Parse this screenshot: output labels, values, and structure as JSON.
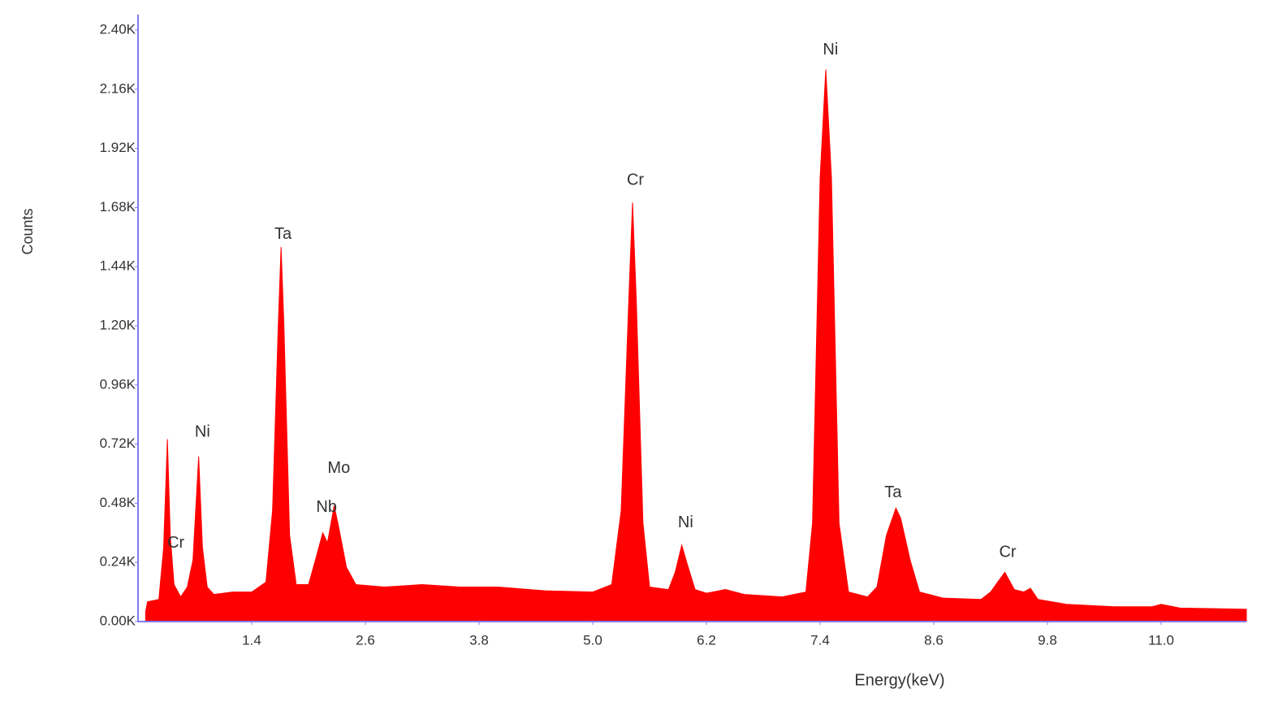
{
  "chart_data": {
    "type": "area",
    "x_label": "Energy(keV)",
    "y_label": "Counts",
    "color": "#ff0000",
    "axis_color": "#7b7bef",
    "xlim": [
      0.2,
      11.9
    ],
    "ylim": [
      0,
      2400
    ],
    "xticks": [
      1.4,
      2.6,
      3.8,
      {
        "value": 5,
        "label": "5.0"
      },
      6.2,
      7.4,
      8.6,
      9.8,
      {
        "value": 11,
        "label": "11.0"
      }
    ],
    "yticks": [
      {
        "value": 0,
        "label": "0.00K"
      },
      {
        "value": 240,
        "label": "0.24K"
      },
      {
        "value": 480,
        "label": "0.48K"
      },
      {
        "value": 720,
        "label": "0.72K"
      },
      {
        "value": 960,
        "label": "0.96K"
      },
      {
        "value": 1200,
        "label": "1.20K"
      },
      {
        "value": 1440,
        "label": "1.44K"
      },
      {
        "value": 1680,
        "label": "1.68K"
      },
      {
        "value": 1920,
        "label": "1.92K"
      },
      {
        "value": 2160,
        "label": "2.16K"
      },
      {
        "value": 2400,
        "label": "2.40K"
      }
    ],
    "x": [
      0.28,
      0.3,
      0.42,
      0.47,
      0.51,
      0.54,
      0.58,
      0.65,
      0.72,
      0.78,
      0.84,
      0.88,
      0.93,
      1.0,
      1.2,
      1.4,
      1.55,
      1.62,
      1.68,
      1.71,
      1.74,
      1.8,
      1.87,
      2.0,
      2.08,
      2.15,
      2.2,
      2.27,
      2.32,
      2.4,
      2.5,
      2.8,
      3.2,
      3.6,
      4.0,
      4.5,
      5.0,
      5.2,
      5.3,
      5.38,
      5.42,
      5.46,
      5.53,
      5.6,
      5.8,
      5.87,
      5.94,
      6.0,
      6.08,
      6.2,
      6.4,
      6.6,
      7.0,
      7.25,
      7.32,
      7.4,
      7.46,
      7.52,
      7.6,
      7.7,
      7.9,
      8.0,
      8.1,
      8.2,
      8.25,
      8.35,
      8.45,
      8.7,
      9.1,
      9.2,
      9.35,
      9.45,
      9.55,
      9.62,
      9.7,
      10.0,
      10.5,
      10.9,
      11.0,
      11.2,
      11.9
    ],
    "values": [
      40,
      80,
      90,
      300,
      740,
      350,
      150,
      100,
      140,
      250,
      670,
      300,
      140,
      110,
      120,
      120,
      160,
      450,
      1200,
      1520,
      1200,
      350,
      150,
      150,
      260,
      360,
      320,
      470,
      380,
      220,
      150,
      140,
      150,
      140,
      140,
      125,
      120,
      150,
      450,
      1300,
      1700,
      1300,
      400,
      140,
      130,
      200,
      310,
      230,
      130,
      115,
      130,
      110,
      100,
      120,
      400,
      1800,
      2240,
      1800,
      400,
      120,
      100,
      140,
      350,
      460,
      420,
      250,
      120,
      95,
      90,
      120,
      200,
      130,
      120,
      135,
      90,
      70,
      60,
      60,
      70,
      55,
      50
    ],
    "annotations": [
      {
        "text": "Cr",
        "x": 0.6,
        "y": 318
      },
      {
        "text": "Ni",
        "x": 0.88,
        "y": 767
      },
      {
        "text": "Ta",
        "x": 1.73,
        "y": 1570
      },
      {
        "text": "Mo",
        "x": 2.32,
        "y": 620
      },
      {
        "text": "Nb",
        "x": 2.19,
        "y": 462
      },
      {
        "text": "Cr",
        "x": 5.45,
        "y": 1790
      },
      {
        "text": "Ni",
        "x": 5.98,
        "y": 400
      },
      {
        "text": "Ni",
        "x": 7.51,
        "y": 2318
      },
      {
        "text": "Ta",
        "x": 8.17,
        "y": 521
      },
      {
        "text": "Cr",
        "x": 9.38,
        "y": 279
      }
    ]
  }
}
